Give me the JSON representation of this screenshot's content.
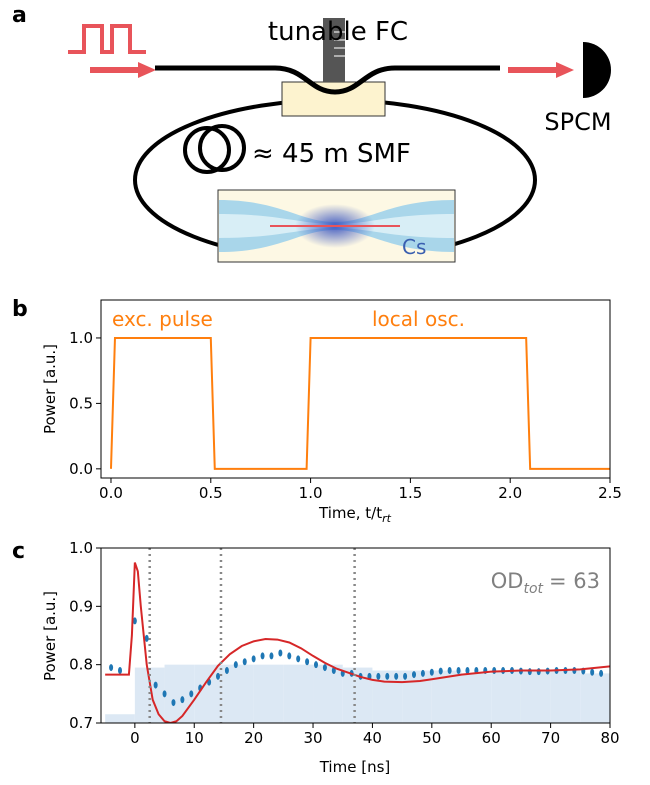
{
  "diagram": {
    "label": "a",
    "coupler": "tunable FC",
    "detector": "SPCM",
    "fiber": "≈ 45 m SMF",
    "atoms": "Cs"
  },
  "chart_data": [
    {
      "type": "line",
      "label": "b",
      "xlabel": "Time, t/t",
      "xlabel_sub": "rt",
      "ylabel": "Power [a.u.]",
      "xlim": [
        -0.05,
        2.5
      ],
      "ylim": [
        -0.07,
        1.29
      ],
      "xticks": [
        {
          "value": 0,
          "label": "0.0"
        },
        {
          "value": 0.5,
          "label": "0.5"
        },
        {
          "value": 1,
          "label": "1.0"
        },
        {
          "value": 1.5,
          "label": "1.5"
        },
        {
          "value": 2,
          "label": "2.0"
        },
        {
          "value": 2.5,
          "label": "2.5"
        }
      ],
      "yticks": [
        {
          "value": 0,
          "label": "0.0"
        },
        {
          "value": 0.5,
          "label": "0.5"
        },
        {
          "value": 1,
          "label": "1.0"
        }
      ],
      "annotations": [
        "exc. pulse",
        "local osc."
      ],
      "series": [
        {
          "type": "line",
          "color": "#ff7f0e",
          "x": [
            0,
            0.02,
            0.5,
            0.52,
            0.98,
            1.0,
            2.08,
            2.1,
            2.5
          ],
          "values": [
            0,
            1,
            1,
            0,
            0,
            1,
            1,
            0,
            0
          ]
        }
      ]
    },
    {
      "type": "scatter",
      "label": "c",
      "xlabel": "Time [ns]",
      "ylabel": "Power [a.u.]",
      "xlim": [
        -5.7,
        80
      ],
      "ylim": [
        0.7,
        1.0
      ],
      "xticks": [
        0,
        10,
        20,
        30,
        40,
        50,
        60,
        70,
        80
      ],
      "yticks": [
        0.7,
        0.8,
        0.9,
        {
          "value": 1,
          "label": "1.0"
        }
      ],
      "annotation": {
        "text": "OD",
        "sub": "tot",
        "rest": "= 63"
      },
      "vlines": [
        2.5,
        14.5,
        37
      ],
      "series": [
        {
          "type": "histogram",
          "color": "#dce8f4",
          "bins": [
            -5,
            0,
            5,
            10,
            15,
            20,
            25,
            30,
            35,
            40,
            45,
            50,
            55,
            60,
            65,
            70,
            75,
            80
          ],
          "values": [
            0.715,
            0.795,
            0.8,
            0.8,
            0.8,
            0.8,
            0.8,
            0.8,
            0.795,
            0.79,
            0.79,
            0.79,
            0.785,
            0.79,
            0.79,
            0.79,
            0.785
          ]
        },
        {
          "type": "scatter",
          "color": "#1f77b4",
          "x": [
            -4,
            -2.5,
            0,
            2,
            3.5,
            5,
            6.5,
            8,
            9.5,
            11,
            12.5,
            14,
            15.5,
            17,
            18.5,
            20,
            21.5,
            23,
            24.5,
            26,
            27.5,
            29,
            30.5,
            32,
            33.5,
            35,
            36.5,
            38,
            39.5,
            41,
            42.5,
            44,
            45.5,
            47,
            48.5,
            50,
            51.5,
            53,
            54.5,
            56,
            57.5,
            59,
            60.5,
            62,
            63.5,
            65,
            66.5,
            68,
            69.5,
            71,
            72.5,
            74,
            75.5,
            77,
            78.5
          ],
          "values": [
            0.795,
            0.79,
            0.875,
            0.845,
            0.765,
            0.75,
            0.735,
            0.74,
            0.75,
            0.76,
            0.77,
            0.78,
            0.79,
            0.8,
            0.805,
            0.81,
            0.815,
            0.815,
            0.82,
            0.815,
            0.81,
            0.805,
            0.8,
            0.795,
            0.79,
            0.785,
            0.785,
            0.78,
            0.78,
            0.78,
            0.78,
            0.78,
            0.78,
            0.783,
            0.785,
            0.787,
            0.789,
            0.79,
            0.79,
            0.79,
            0.79,
            0.79,
            0.79,
            0.79,
            0.79,
            0.789,
            0.788,
            0.788,
            0.789,
            0.79,
            0.79,
            0.79,
            0.789,
            0.787,
            0.785
          ]
        },
        {
          "type": "line",
          "color": "#d62728",
          "x": [
            -5,
            -1,
            -0.5,
            0,
            0.5,
            1,
            2,
            3,
            4,
            5,
            6,
            7,
            8,
            10,
            12,
            14,
            16,
            18,
            20,
            22,
            24,
            26,
            28,
            30,
            32,
            34,
            36,
            38,
            40,
            42,
            45,
            48,
            50,
            55,
            60,
            65,
            70,
            75,
            80
          ],
          "values": [
            0.783,
            0.783,
            0.85,
            0.975,
            0.96,
            0.9,
            0.8,
            0.74,
            0.715,
            0.703,
            0.7,
            0.703,
            0.712,
            0.74,
            0.77,
            0.798,
            0.818,
            0.832,
            0.84,
            0.844,
            0.843,
            0.838,
            0.828,
            0.815,
            0.803,
            0.793,
            0.786,
            0.779,
            0.774,
            0.771,
            0.77,
            0.772,
            0.775,
            0.783,
            0.788,
            0.79,
            0.79,
            0.792,
            0.797
          ]
        }
      ]
    }
  ]
}
